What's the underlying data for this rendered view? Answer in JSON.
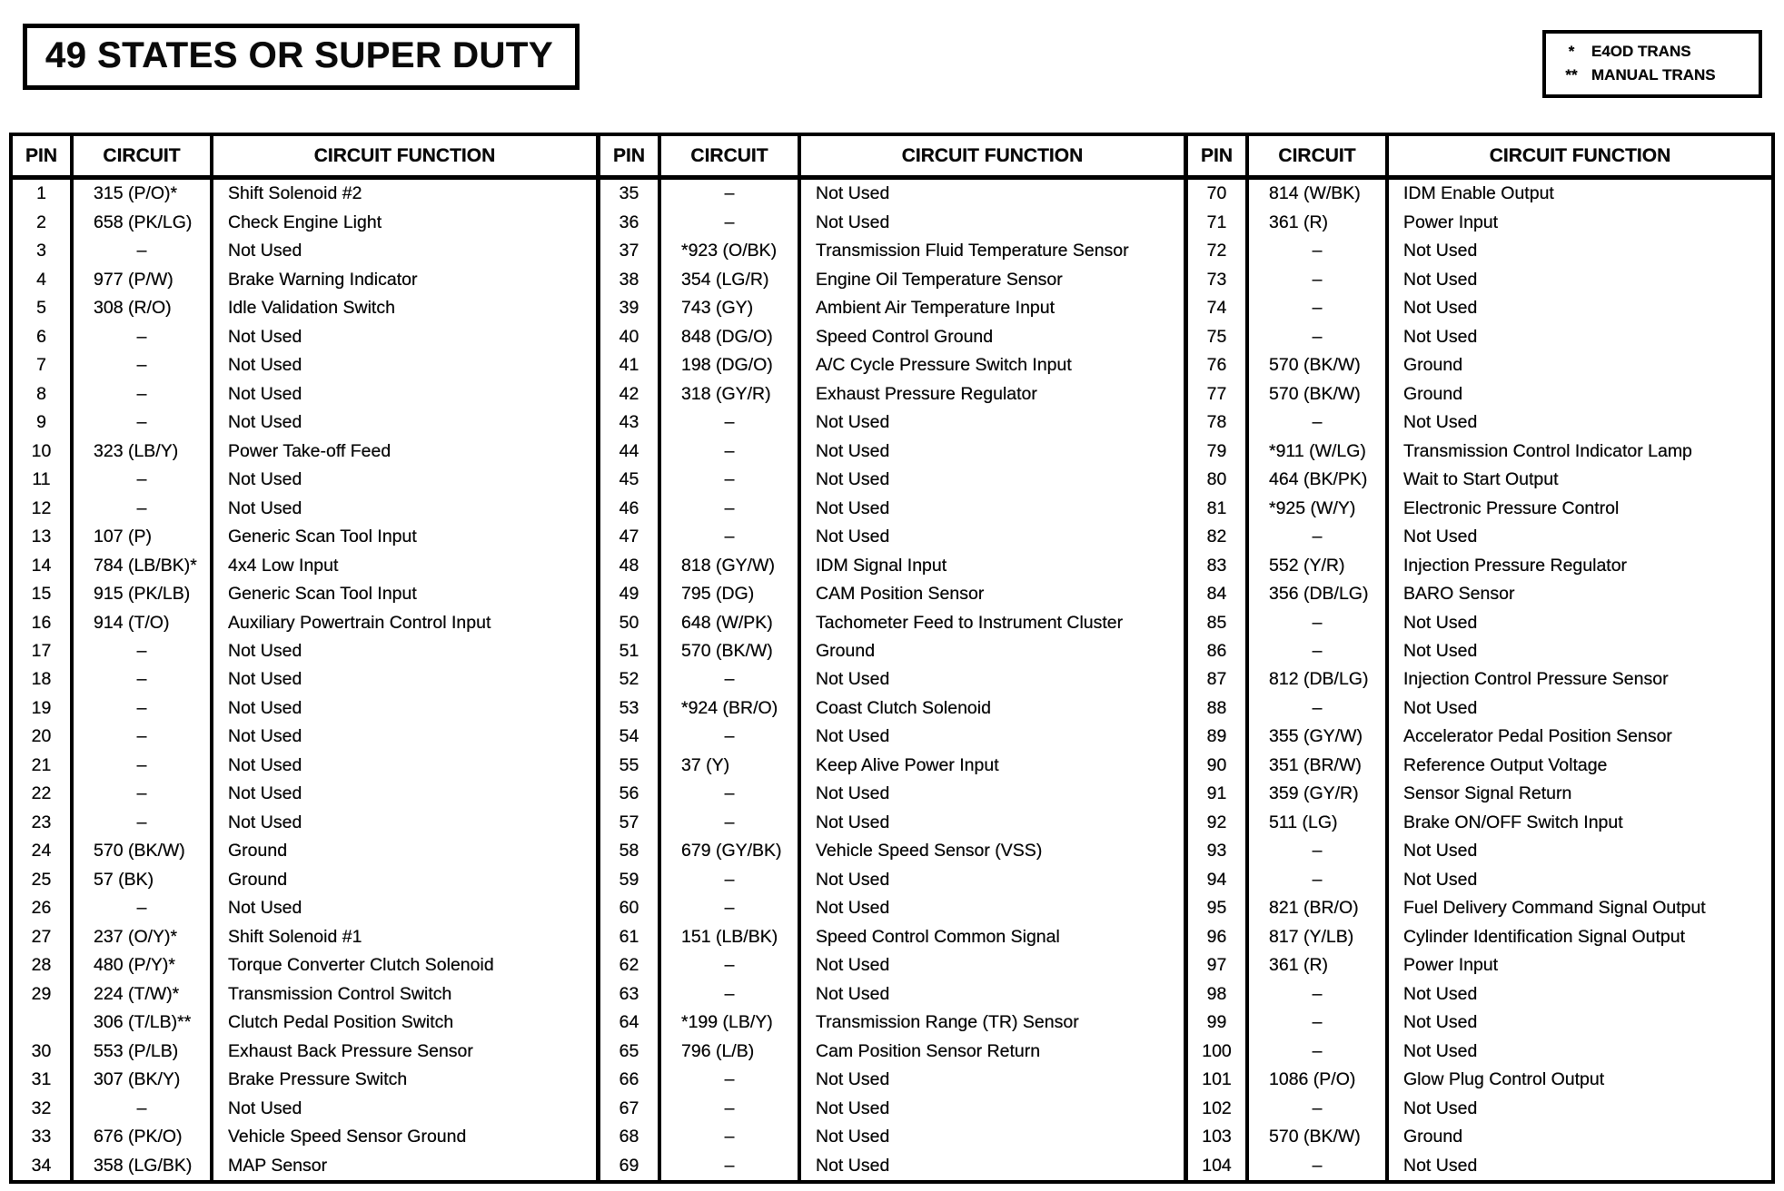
{
  "title": "49 STATES OR SUPER DUTY",
  "colors": {
    "ink": "#000000",
    "paper": "#ffffff"
  },
  "legend": {
    "items": [
      {
        "symbol": "*",
        "label": "E4OD TRANS"
      },
      {
        "symbol": "**",
        "label": "MANUAL TRANS"
      }
    ]
  },
  "table": {
    "headers": [
      "PIN",
      "CIRCUIT",
      "CIRCUIT FUNCTION"
    ],
    "sections": [
      {
        "rows": [
          [
            "1",
            "315 (P/O)*",
            "Shift Solenoid #2"
          ],
          [
            "2",
            "658 (PK/LG)",
            "Check Engine Light"
          ],
          [
            "3",
            "–",
            "Not Used"
          ],
          [
            "4",
            "977 (P/W)",
            "Brake Warning Indicator"
          ],
          [
            "5",
            "308 (R/O)",
            "Idle Validation Switch"
          ],
          [
            "6",
            "–",
            "Not Used"
          ],
          [
            "7",
            "–",
            "Not Used"
          ],
          [
            "8",
            "–",
            "Not Used"
          ],
          [
            "9",
            "–",
            "Not Used"
          ],
          [
            "10",
            "323 (LB/Y)",
            "Power Take-off Feed"
          ],
          [
            "11",
            "–",
            "Not Used"
          ],
          [
            "12",
            "–",
            "Not Used"
          ],
          [
            "13",
            "107 (P)",
            "Generic Scan Tool Input"
          ],
          [
            "14",
            "784 (LB/BK)*",
            "4x4 Low Input"
          ],
          [
            "15",
            "915 (PK/LB)",
            "Generic Scan Tool Input"
          ],
          [
            "16",
            "914 (T/O)",
            "Auxiliary Powertrain Control Input"
          ],
          [
            "17",
            "–",
            "Not Used"
          ],
          [
            "18",
            "–",
            "Not Used"
          ],
          [
            "19",
            "–",
            "Not Used"
          ],
          [
            "20",
            "–",
            "Not Used"
          ],
          [
            "21",
            "–",
            "Not Used"
          ],
          [
            "22",
            "–",
            "Not Used"
          ],
          [
            "23",
            "–",
            "Not Used"
          ],
          [
            "24",
            "570 (BK/W)",
            "Ground"
          ],
          [
            "25",
            "57 (BK)",
            "Ground"
          ],
          [
            "26",
            "–",
            "Not Used"
          ],
          [
            "27",
            "237 (O/Y)*",
            "Shift Solenoid #1"
          ],
          [
            "28",
            "480 (P/Y)*",
            "Torque Converter Clutch  Solenoid"
          ],
          [
            "29",
            "224 (T/W)*",
            "Transmission Control Switch"
          ],
          [
            "",
            "306 (T/LB)**",
            "Clutch Pedal Position Switch"
          ],
          [
            "30",
            "553 (P/LB)",
            "Exhaust Back Pressure Sensor"
          ],
          [
            "31",
            "307 (BK/Y)",
            "Brake Pressure Switch"
          ],
          [
            "32",
            "–",
            "Not Used"
          ],
          [
            "33",
            "676 (PK/O)",
            "Vehicle Speed Sensor Ground"
          ],
          [
            "34",
            "358 (LG/BK)",
            "MAP Sensor"
          ]
        ]
      },
      {
        "rows": [
          [
            "35",
            "–",
            "Not Used"
          ],
          [
            "36",
            "–",
            "Not Used"
          ],
          [
            "37",
            "*923 (O/BK)",
            "Transmission Fluid Temperature Sensor"
          ],
          [
            "38",
            "354 (LG/R)",
            "Engine Oil Temperature Sensor"
          ],
          [
            "39",
            "743 (GY)",
            "Ambient Air Temperature Input"
          ],
          [
            "40",
            "848 (DG/O)",
            "Speed Control Ground"
          ],
          [
            "41",
            "198 (DG/O)",
            "A/C Cycle Pressure Switch Input"
          ],
          [
            "42",
            "318 (GY/R)",
            "Exhaust Pressure Regulator"
          ],
          [
            "43",
            "–",
            "Not Used"
          ],
          [
            "44",
            "–",
            "Not Used"
          ],
          [
            "45",
            "–",
            "Not Used"
          ],
          [
            "46",
            "–",
            "Not Used"
          ],
          [
            "47",
            "–",
            "Not Used"
          ],
          [
            "48",
            "818 (GY/W)",
            "IDM Signal Input"
          ],
          [
            "49",
            "795 (DG)",
            "CAM Position Sensor"
          ],
          [
            "50",
            "648 (W/PK)",
            "Tachometer Feed to Instrument Cluster"
          ],
          [
            "51",
            "570 (BK/W)",
            "Ground"
          ],
          [
            "52",
            "–",
            "Not Used"
          ],
          [
            "53",
            "*924 (BR/O)",
            "Coast Clutch Solenoid"
          ],
          [
            "54",
            "–",
            "Not Used"
          ],
          [
            "55",
            "37 (Y)",
            "Keep Alive Power Input"
          ],
          [
            "56",
            "–",
            "Not Used"
          ],
          [
            "57",
            "–",
            "Not Used"
          ],
          [
            "58",
            "679 (GY/BK)",
            "Vehicle Speed Sensor (VSS)"
          ],
          [
            "59",
            "–",
            "Not Used"
          ],
          [
            "60",
            "–",
            "Not Used"
          ],
          [
            "61",
            "151 (LB/BK)",
            "Speed Control Common Signal"
          ],
          [
            "62",
            "–",
            "Not Used"
          ],
          [
            "63",
            "–",
            "Not Used"
          ],
          [
            "64",
            "*199 (LB/Y)",
            "Transmission Range (TR) Sensor"
          ],
          [
            "65",
            "796 (L/B)",
            "Cam Position Sensor Return"
          ],
          [
            "66",
            "–",
            "Not Used"
          ],
          [
            "67",
            "–",
            "Not Used"
          ],
          [
            "68",
            "–",
            "Not Used"
          ],
          [
            "69",
            "–",
            "Not Used"
          ]
        ]
      },
      {
        "rows": [
          [
            "70",
            "814 (W/BK)",
            "IDM Enable Output"
          ],
          [
            "71",
            "361 (R)",
            "Power Input"
          ],
          [
            "72",
            "–",
            "Not Used"
          ],
          [
            "73",
            "–",
            "Not Used"
          ],
          [
            "74",
            "–",
            "Not Used"
          ],
          [
            "75",
            "–",
            "Not Used"
          ],
          [
            "76",
            "570 (BK/W)",
            "Ground"
          ],
          [
            "77",
            "570 (BK/W)",
            "Ground"
          ],
          [
            "78",
            "–",
            "Not Used"
          ],
          [
            "79",
            "*911 (W/LG)",
            "Transmission Control Indicator Lamp"
          ],
          [
            "80",
            "464 (BK/PK)",
            "Wait to Start Output"
          ],
          [
            "81",
            "*925 (W/Y)",
            "Electronic Pressure Control"
          ],
          [
            "82",
            "–",
            "Not Used"
          ],
          [
            "83",
            "552 (Y/R)",
            "Injection Pressure Regulator"
          ],
          [
            "84",
            "356 (DB/LG)",
            "BARO Sensor"
          ],
          [
            "85",
            "–",
            "Not Used"
          ],
          [
            "86",
            "–",
            "Not Used"
          ],
          [
            "87",
            "812 (DB/LG)",
            "Injection Control Pressure Sensor"
          ],
          [
            "88",
            "–",
            "Not Used"
          ],
          [
            "89",
            "355 (GY/W)",
            "Accelerator Pedal Position Sensor"
          ],
          [
            "90",
            "351 (BR/W)",
            "Reference  Output Voltage"
          ],
          [
            "91",
            "359 (GY/R)",
            "Sensor Signal Return"
          ],
          [
            "92",
            "511 (LG)",
            "Brake ON/OFF Switch Input"
          ],
          [
            "93",
            "–",
            "Not Used"
          ],
          [
            "94",
            "–",
            "Not Used"
          ],
          [
            "95",
            "821 (BR/O)",
            "Fuel Delivery Command Signal Output"
          ],
          [
            "96",
            "817 (Y/LB)",
            "Cylinder Identification Signal Output"
          ],
          [
            "97",
            "361 (R)",
            "Power Input"
          ],
          [
            "98",
            "–",
            "Not Used"
          ],
          [
            "99",
            "–",
            "Not Used"
          ],
          [
            "100",
            "–",
            "Not Used"
          ],
          [
            "101",
            "1086 (P/O)",
            "Glow Plug Control Output"
          ],
          [
            "102",
            "–",
            "Not Used"
          ],
          [
            "103",
            "570 (BK/W)",
            "Ground"
          ],
          [
            "104",
            "–",
            "Not Used"
          ]
        ]
      }
    ]
  }
}
